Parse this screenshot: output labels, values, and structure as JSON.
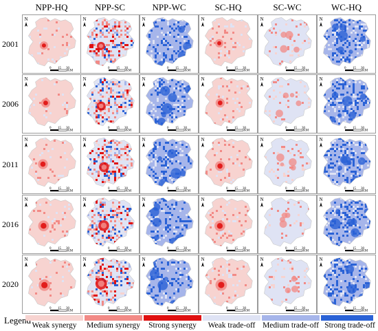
{
  "columns": [
    "NPP-HQ",
    "NPP-SC",
    "NPP-WC",
    "SC-HQ",
    "SC-WC",
    "WC-HQ"
  ],
  "years": [
    "2001",
    "2006",
    "2011",
    "2016",
    "2020"
  ],
  "map_labels": {
    "north": "N",
    "scale_ticks": [
      "0",
      "15",
      "30"
    ],
    "scale_unit": "KM"
  },
  "legend": {
    "title": "Legend",
    "items": [
      {
        "label": "Weak synergy",
        "color": "#f7d3d0"
      },
      {
        "label": "Medium synergy",
        "color": "#f28a86"
      },
      {
        "label": "Strong synergy",
        "color": "#e01010"
      },
      {
        "label": "Weak trade-off",
        "color": "#dfe3f4"
      },
      {
        "label": "Medium trade-off",
        "color": "#a6b5ea"
      },
      {
        "label": "Strong trade-off",
        "color": "#2a62d6"
      }
    ]
  }
}
